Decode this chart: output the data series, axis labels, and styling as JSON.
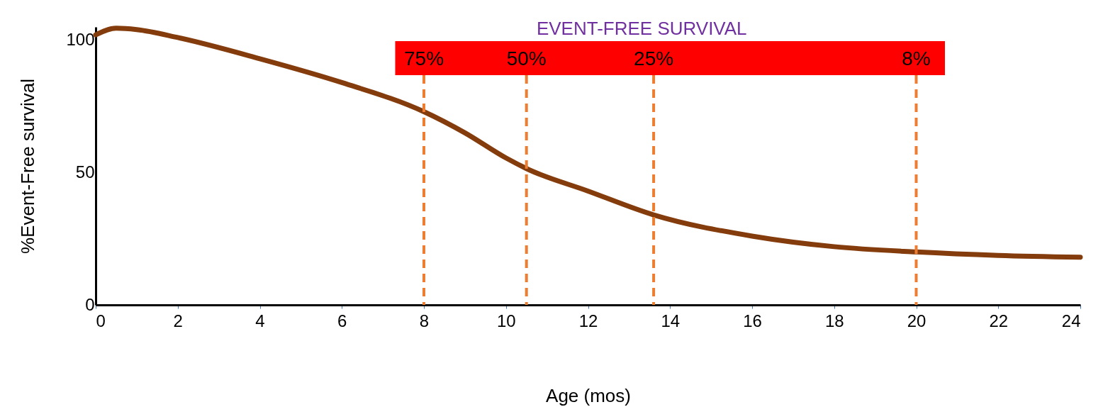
{
  "chart_data": {
    "type": "line",
    "xlabel": "Age (mos)",
    "ylabel": "%Event-Free survival",
    "x": [
      0,
      0.5,
      1,
      2,
      4,
      6,
      8,
      9,
      10,
      10.5,
      12,
      13.6,
      16,
      18,
      20,
      22,
      24
    ],
    "series": [
      {
        "color": "#843c0c",
        "values": [
          102,
          104.5,
          104,
          101,
          93,
          84,
          73,
          65,
          55.5,
          51.5,
          43,
          34,
          26,
          22,
          20,
          18.7,
          18
        ]
      }
    ],
    "xlim": [
      0,
      24
    ],
    "xticks": [
      0,
      2,
      4,
      6,
      8,
      10,
      12,
      14,
      16,
      18,
      20,
      22,
      24
    ],
    "ylim": [
      0,
      105
    ],
    "yticks": [
      0,
      50,
      100
    ],
    "grid": false,
    "line_style": "solid",
    "ref_lines": [
      {
        "axis": "x",
        "value": 8,
        "color": "#ed7d31",
        "line_style": "dashed"
      },
      {
        "axis": "x",
        "value": 10.5,
        "color": "#ed7d31",
        "line_style": "dashed"
      },
      {
        "axis": "x",
        "value": 13.6,
        "color": "#ed7d31",
        "line_style": "dashed"
      },
      {
        "axis": "x",
        "value": 20,
        "color": "#ed7d31",
        "line_style": "dashed"
      }
    ],
    "annotations": [
      "75%",
      "50%",
      "25%",
      "8%"
    ],
    "bands": [
      {
        "axis": "x",
        "from": 7.3,
        "to": 20.7,
        "label": "EVENT-FREE SURVIVAL",
        "color": "#ff0000"
      }
    ]
  }
}
